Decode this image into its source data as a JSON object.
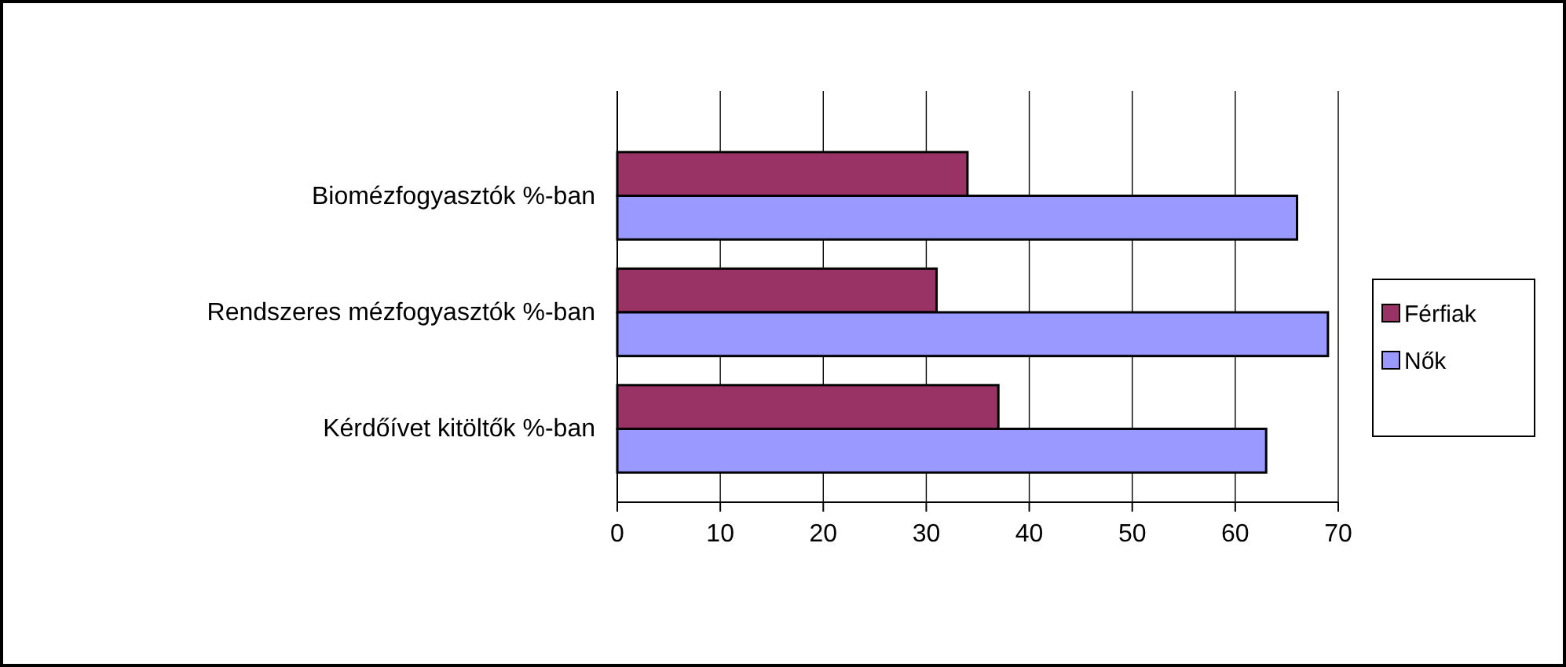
{
  "chart_data": {
    "type": "bar",
    "orientation": "horizontal",
    "categories": [
      "Biomézfogyasztók %-ban",
      "Rendszeres mézfogyasztók %-ban",
      "Kérdőívet kitöltők %-ban"
    ],
    "series": [
      {
        "name": "Férfiak",
        "color": "#993366",
        "values": [
          34,
          31,
          37
        ]
      },
      {
        "name": "Nők",
        "color": "#9999ff",
        "values": [
          66,
          69,
          63
        ]
      }
    ],
    "xlim": [
      0,
      70
    ],
    "xticks": [
      0,
      10,
      20,
      30,
      40,
      50,
      60,
      70
    ],
    "grid": "x",
    "legend": "right"
  }
}
